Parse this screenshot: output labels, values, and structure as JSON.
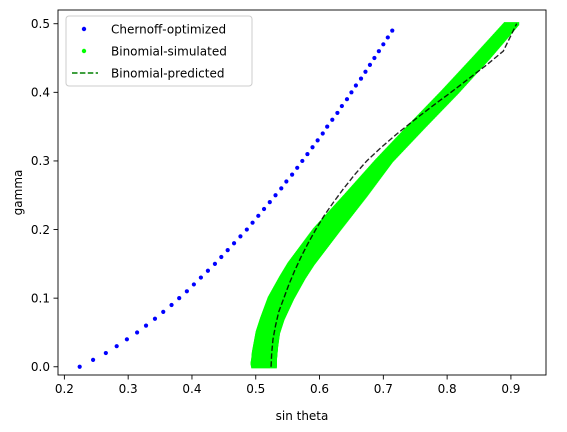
{
  "chart_data": {
    "type": "scatter",
    "xlabel": "sin theta",
    "ylabel": "gamma",
    "xlim": [
      0.19,
      0.955
    ],
    "ylim": [
      -0.012,
      0.52
    ],
    "xticks": [
      0.2,
      0.3,
      0.4,
      0.5,
      0.6,
      0.7,
      0.8,
      0.9
    ],
    "yticks": [
      0.0,
      0.1,
      0.2,
      0.3,
      0.4,
      0.5
    ],
    "grid": false,
    "legend_position": "top-left",
    "series": [
      {
        "name": "Chernoff-optimized",
        "kind": "points",
        "color": "#0000ff",
        "x": [
          0.224,
          0.245,
          0.265,
          0.282,
          0.298,
          0.314,
          0.328,
          0.342,
          0.355,
          0.368,
          0.38,
          0.392,
          0.403,
          0.414,
          0.425,
          0.436,
          0.446,
          0.456,
          0.466,
          0.476,
          0.486,
          0.495,
          0.504,
          0.513,
          0.522,
          0.531,
          0.54,
          0.548,
          0.557,
          0.565,
          0.573,
          0.581,
          0.589,
          0.597,
          0.605,
          0.612,
          0.62,
          0.628,
          0.635,
          0.643,
          0.65,
          0.657,
          0.665,
          0.672,
          0.679,
          0.686,
          0.693,
          0.7,
          0.707,
          0.714
        ],
        "y": [
          0.0,
          0.01,
          0.02,
          0.03,
          0.04,
          0.05,
          0.06,
          0.07,
          0.08,
          0.09,
          0.1,
          0.11,
          0.12,
          0.13,
          0.14,
          0.15,
          0.16,
          0.17,
          0.18,
          0.19,
          0.2,
          0.21,
          0.22,
          0.23,
          0.24,
          0.25,
          0.26,
          0.27,
          0.28,
          0.29,
          0.3,
          0.31,
          0.32,
          0.33,
          0.34,
          0.35,
          0.36,
          0.37,
          0.38,
          0.39,
          0.4,
          0.41,
          0.42,
          0.43,
          0.44,
          0.45,
          0.46,
          0.47,
          0.48,
          0.49
        ]
      },
      {
        "name": "Binomial-simulated",
        "kind": "band",
        "color": "#00ff00",
        "gamma": [
          0.0,
          0.005,
          0.01,
          0.02,
          0.03,
          0.05,
          0.07,
          0.1,
          0.13,
          0.15,
          0.2,
          0.25,
          0.3,
          0.35,
          0.4,
          0.45,
          0.5
        ],
        "x_low": [
          0.493,
          0.492,
          0.493,
          0.494,
          0.496,
          0.5,
          0.507,
          0.519,
          0.537,
          0.55,
          0.59,
          0.639,
          0.687,
          0.738,
          0.79,
          0.84,
          0.889
        ],
        "x_high": [
          0.533,
          0.533,
          0.533,
          0.534,
          0.535,
          0.538,
          0.545,
          0.56,
          0.578,
          0.592,
          0.633,
          0.675,
          0.715,
          0.766,
          0.818,
          0.867,
          0.913
        ]
      },
      {
        "name": "Binomial-predicted",
        "kind": "line",
        "color": "#000000",
        "dash": "dashed",
        "x": [
          0.524,
          0.525,
          0.527,
          0.531,
          0.536,
          0.544,
          0.552,
          0.561,
          0.571,
          0.582,
          0.594,
          0.607,
          0.622,
          0.638,
          0.655,
          0.674,
          0.697,
          0.722,
          0.749,
          0.777,
          0.806,
          0.834,
          0.862,
          0.888,
          0.909
        ],
        "y": [
          0.0,
          0.02,
          0.04,
          0.06,
          0.08,
          0.1,
          0.12,
          0.14,
          0.16,
          0.18,
          0.2,
          0.22,
          0.24,
          0.26,
          0.28,
          0.3,
          0.32,
          0.34,
          0.36,
          0.38,
          0.4,
          0.42,
          0.44,
          0.46,
          0.5
        ]
      }
    ]
  }
}
